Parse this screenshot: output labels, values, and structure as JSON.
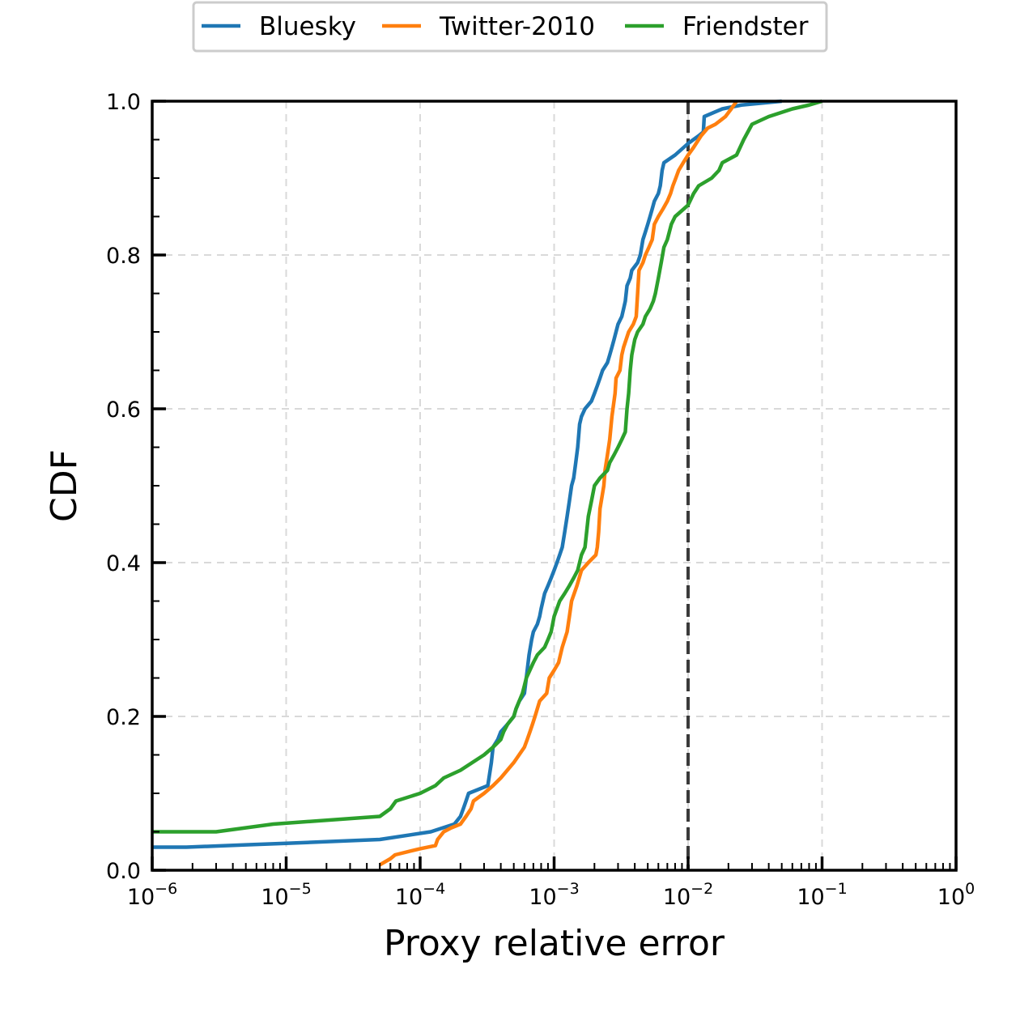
{
  "chart_data": {
    "type": "line",
    "xlabel": "Proxy relative error",
    "ylabel": "CDF",
    "xscale": "log",
    "xlim": [
      1e-06,
      1
    ],
    "ylim": [
      0,
      1
    ],
    "grid": true,
    "legend_position": "top-center",
    "x_ticks": [
      {
        "value": 1e-06,
        "base": "10",
        "exp": "−6"
      },
      {
        "value": 1e-05,
        "base": "10",
        "exp": "−5"
      },
      {
        "value": 0.0001,
        "base": "10",
        "exp": "−4"
      },
      {
        "value": 0.001,
        "base": "10",
        "exp": "−3"
      },
      {
        "value": 0.01,
        "base": "10",
        "exp": "−2"
      },
      {
        "value": 0.1,
        "base": "10",
        "exp": "−1"
      },
      {
        "value": 1,
        "base": "10",
        "exp": "0"
      }
    ],
    "y_ticks": [
      {
        "value": 0.0,
        "label": "0.0"
      },
      {
        "value": 0.2,
        "label": "0.2"
      },
      {
        "value": 0.4,
        "label": "0.4"
      },
      {
        "value": 0.6,
        "label": "0.6"
      },
      {
        "value": 0.8,
        "label": "0.8"
      },
      {
        "value": 1.0,
        "label": "1.0"
      }
    ],
    "reference_line": {
      "x": 0.01,
      "color": "#3a3a3a",
      "style": "dashed"
    },
    "series": [
      {
        "name": "Bluesky",
        "color": "#1f77b4",
        "points": [
          [
            1e-06,
            0.03
          ],
          [
            1.8e-06,
            0.03
          ],
          [
            5e-06,
            0.033
          ],
          [
            1e-05,
            0.035
          ],
          [
            5e-05,
            0.04
          ],
          [
            0.00012,
            0.05
          ],
          [
            0.00018,
            0.06
          ],
          [
            0.0002,
            0.07
          ],
          [
            0.00021,
            0.08
          ],
          [
            0.00022,
            0.09
          ],
          [
            0.00023,
            0.1
          ],
          [
            0.00032,
            0.11
          ],
          [
            0.00034,
            0.14
          ],
          [
            0.00035,
            0.16
          ],
          [
            0.00038,
            0.17
          ],
          [
            0.0004,
            0.18
          ],
          [
            0.00045,
            0.19
          ],
          [
            0.0005,
            0.2
          ],
          [
            0.00052,
            0.21
          ],
          [
            0.00055,
            0.22
          ],
          [
            0.0006,
            0.23
          ],
          [
            0.00062,
            0.25
          ],
          [
            0.00065,
            0.28
          ],
          [
            0.00068,
            0.3
          ],
          [
            0.0007,
            0.31
          ],
          [
            0.00075,
            0.32
          ],
          [
            0.00078,
            0.33
          ],
          [
            0.0008,
            0.34
          ],
          [
            0.00085,
            0.36
          ],
          [
            0.0009,
            0.37
          ],
          [
            0.00095,
            0.38
          ],
          [
            0.001,
            0.39
          ],
          [
            0.00105,
            0.4
          ],
          [
            0.0011,
            0.41
          ],
          [
            0.00115,
            0.42
          ],
          [
            0.0012,
            0.44
          ],
          [
            0.00125,
            0.46
          ],
          [
            0.0013,
            0.48
          ],
          [
            0.00135,
            0.5
          ],
          [
            0.0014,
            0.51
          ],
          [
            0.00145,
            0.53
          ],
          [
            0.0015,
            0.55
          ],
          [
            0.00155,
            0.58
          ],
          [
            0.0016,
            0.59
          ],
          [
            0.0017,
            0.6
          ],
          [
            0.0019,
            0.61
          ],
          [
            0.002,
            0.62
          ],
          [
            0.0021,
            0.63
          ],
          [
            0.0022,
            0.64
          ],
          [
            0.0023,
            0.65
          ],
          [
            0.0025,
            0.66
          ],
          [
            0.0026,
            0.67
          ],
          [
            0.0027,
            0.68
          ],
          [
            0.0028,
            0.69
          ],
          [
            0.003,
            0.71
          ],
          [
            0.0032,
            0.72
          ],
          [
            0.0033,
            0.73
          ],
          [
            0.0034,
            0.74
          ],
          [
            0.0035,
            0.76
          ],
          [
            0.0037,
            0.77
          ],
          [
            0.0038,
            0.78
          ],
          [
            0.0042,
            0.79
          ],
          [
            0.0044,
            0.8
          ],
          [
            0.0046,
            0.82
          ],
          [
            0.0048,
            0.83
          ],
          [
            0.005,
            0.84
          ],
          [
            0.0052,
            0.85
          ],
          [
            0.0054,
            0.86
          ],
          [
            0.0056,
            0.87
          ],
          [
            0.006,
            0.88
          ],
          [
            0.0062,
            0.89
          ],
          [
            0.0064,
            0.91
          ],
          [
            0.0066,
            0.92
          ],
          [
            0.008,
            0.93
          ],
          [
            0.01,
            0.945
          ],
          [
            0.012,
            0.955
          ],
          [
            0.013,
            0.96
          ],
          [
            0.0132,
            0.98
          ],
          [
            0.018,
            0.99
          ],
          [
            0.025,
            0.995
          ],
          [
            0.05,
            1.0
          ]
        ]
      },
      {
        "name": "Twitter-2010",
        "color": "#ff7f0e",
        "points": [
          [
            5e-05,
            0.007
          ],
          [
            6e-05,
            0.015
          ],
          [
            6.5e-05,
            0.02
          ],
          [
            0.0001,
            0.028
          ],
          [
            0.00013,
            0.032
          ],
          [
            0.000135,
            0.04
          ],
          [
            0.00015,
            0.05
          ],
          [
            0.00017,
            0.055
          ],
          [
            0.0002,
            0.06
          ],
          [
            0.00022,
            0.07
          ],
          [
            0.00024,
            0.08
          ],
          [
            0.00025,
            0.09
          ],
          [
            0.0003,
            0.1
          ],
          [
            0.00035,
            0.11
          ],
          [
            0.0004,
            0.12
          ],
          [
            0.0005,
            0.14
          ],
          [
            0.0006,
            0.16
          ],
          [
            0.00063,
            0.17
          ],
          [
            0.00066,
            0.18
          ],
          [
            0.00069,
            0.19
          ],
          [
            0.00072,
            0.2
          ],
          [
            0.00078,
            0.22
          ],
          [
            0.00088,
            0.23
          ],
          [
            0.00092,
            0.25
          ],
          [
            0.001,
            0.26
          ],
          [
            0.00108,
            0.27
          ],
          [
            0.00115,
            0.29
          ],
          [
            0.00125,
            0.31
          ],
          [
            0.0013,
            0.33
          ],
          [
            0.00135,
            0.35
          ],
          [
            0.00148,
            0.37
          ],
          [
            0.0016,
            0.39
          ],
          [
            0.0018,
            0.4
          ],
          [
            0.00205,
            0.41
          ],
          [
            0.0021,
            0.42
          ],
          [
            0.00215,
            0.44
          ],
          [
            0.0022,
            0.47
          ],
          [
            0.00235,
            0.5
          ],
          [
            0.0024,
            0.52
          ],
          [
            0.0025,
            0.54
          ],
          [
            0.0026,
            0.56
          ],
          [
            0.0027,
            0.59
          ],
          [
            0.00285,
            0.62
          ],
          [
            0.0029,
            0.64
          ],
          [
            0.0031,
            0.65
          ],
          [
            0.0032,
            0.67
          ],
          [
            0.0033,
            0.68
          ],
          [
            0.0036,
            0.7
          ],
          [
            0.0039,
            0.71
          ],
          [
            0.0041,
            0.72
          ],
          [
            0.0042,
            0.75
          ],
          [
            0.0043,
            0.78
          ],
          [
            0.0046,
            0.79
          ],
          [
            0.0048,
            0.8
          ],
          [
            0.0051,
            0.81
          ],
          [
            0.0054,
            0.82
          ],
          [
            0.0056,
            0.84
          ],
          [
            0.006,
            0.85
          ],
          [
            0.0065,
            0.86
          ],
          [
            0.007,
            0.87
          ],
          [
            0.0074,
            0.88
          ],
          [
            0.0077,
            0.89
          ],
          [
            0.0081,
            0.9
          ],
          [
            0.0085,
            0.91
          ],
          [
            0.0092,
            0.92
          ],
          [
            0.01,
            0.93
          ],
          [
            0.011,
            0.94
          ],
          [
            0.0125,
            0.955
          ],
          [
            0.014,
            0.965
          ],
          [
            0.016,
            0.97
          ],
          [
            0.019,
            0.98
          ],
          [
            0.021,
            0.99
          ],
          [
            0.023,
            1.0
          ]
        ]
      },
      {
        "name": "Friendster",
        "color": "#2ca02c",
        "points": [
          [
            1e-06,
            0.05
          ],
          [
            3e-06,
            0.05
          ],
          [
            8e-06,
            0.06
          ],
          [
            5e-05,
            0.07
          ],
          [
            6e-05,
            0.08
          ],
          [
            6.6e-05,
            0.09
          ],
          [
            0.0001,
            0.1
          ],
          [
            0.00013,
            0.11
          ],
          [
            0.00015,
            0.12
          ],
          [
            0.0002,
            0.13
          ],
          [
            0.0003,
            0.15
          ],
          [
            0.00035,
            0.16
          ],
          [
            0.0004,
            0.17
          ],
          [
            0.00042,
            0.18
          ],
          [
            0.00045,
            0.19
          ],
          [
            0.0005,
            0.2
          ],
          [
            0.00052,
            0.21
          ],
          [
            0.00058,
            0.23
          ],
          [
            0.0006,
            0.24
          ],
          [
            0.00062,
            0.25
          ],
          [
            0.0007,
            0.27
          ],
          [
            0.00075,
            0.28
          ],
          [
            0.00085,
            0.29
          ],
          [
            0.0009,
            0.3
          ],
          [
            0.00095,
            0.31
          ],
          [
            0.001,
            0.33
          ],
          [
            0.0011,
            0.35
          ],
          [
            0.0012,
            0.36
          ],
          [
            0.0013,
            0.37
          ],
          [
            0.0014,
            0.38
          ],
          [
            0.0015,
            0.39
          ],
          [
            0.0016,
            0.41
          ],
          [
            0.0017,
            0.42
          ],
          [
            0.0018,
            0.46
          ],
          [
            0.0019,
            0.48
          ],
          [
            0.002,
            0.5
          ],
          [
            0.0022,
            0.51
          ],
          [
            0.0025,
            0.52
          ],
          [
            0.0026,
            0.53
          ],
          [
            0.0028,
            0.54
          ],
          [
            0.003,
            0.55
          ],
          [
            0.0032,
            0.56
          ],
          [
            0.0034,
            0.57
          ],
          [
            0.0035,
            0.6
          ],
          [
            0.0036,
            0.62
          ],
          [
            0.0037,
            0.65
          ],
          [
            0.0038,
            0.67
          ],
          [
            0.004,
            0.69
          ],
          [
            0.0042,
            0.7
          ],
          [
            0.0046,
            0.71
          ],
          [
            0.0048,
            0.72
          ],
          [
            0.0052,
            0.73
          ],
          [
            0.0055,
            0.74
          ],
          [
            0.0057,
            0.75
          ],
          [
            0.006,
            0.77
          ],
          [
            0.0063,
            0.79
          ],
          [
            0.0066,
            0.81
          ],
          [
            0.007,
            0.82
          ],
          [
            0.0075,
            0.84
          ],
          [
            0.008,
            0.85
          ],
          [
            0.0093,
            0.86
          ],
          [
            0.01,
            0.865
          ],
          [
            0.011,
            0.88
          ],
          [
            0.012,
            0.89
          ],
          [
            0.015,
            0.9
          ],
          [
            0.017,
            0.91
          ],
          [
            0.018,
            0.92
          ],
          [
            0.023,
            0.93
          ],
          [
            0.026,
            0.95
          ],
          [
            0.03,
            0.97
          ],
          [
            0.04,
            0.98
          ],
          [
            0.06,
            0.99
          ],
          [
            0.08,
            0.995
          ],
          [
            0.1,
            1.0
          ]
        ]
      }
    ]
  }
}
